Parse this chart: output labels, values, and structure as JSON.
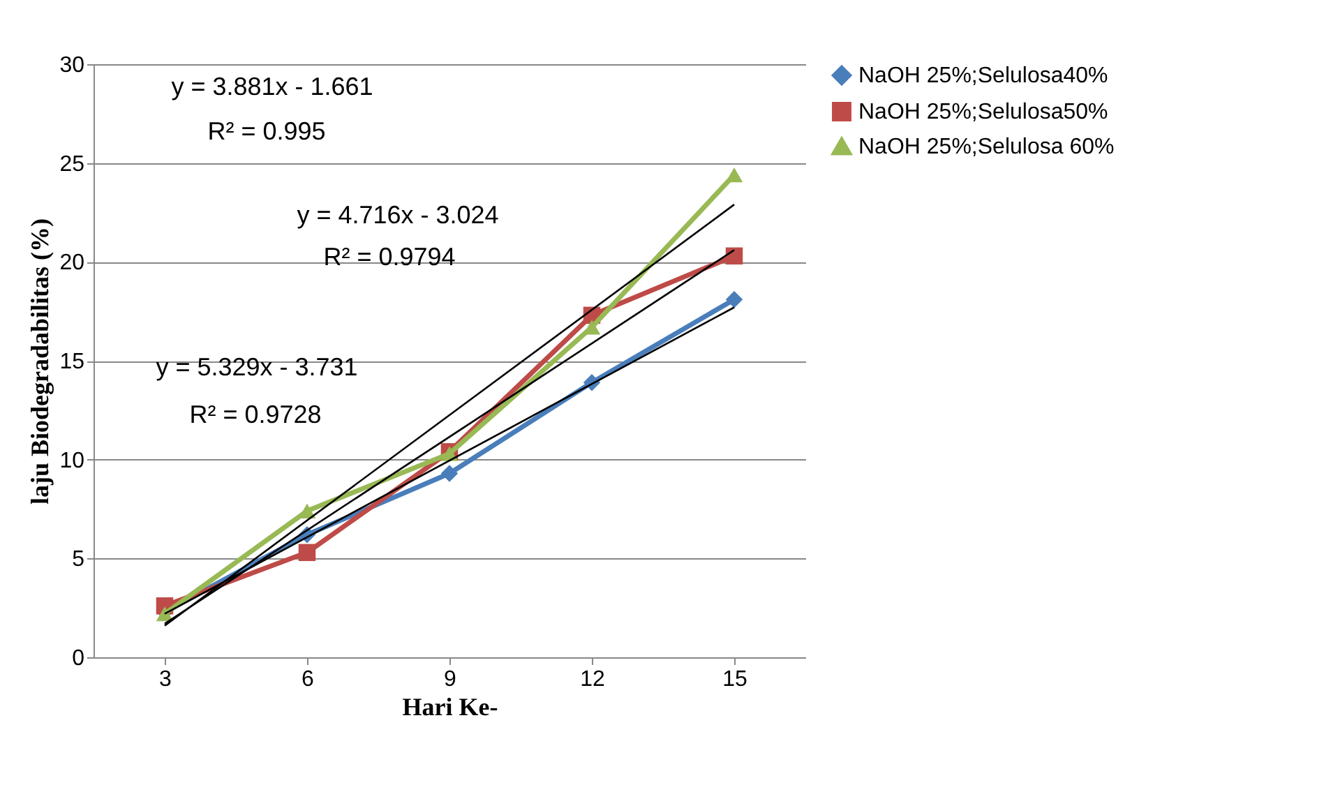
{
  "chart_data": {
    "type": "line",
    "xlabel": "Hari Ke-",
    "ylabel": "laju Biodegradabilitas (%)",
    "categories": [
      "3",
      "6",
      "9",
      "12",
      "15"
    ],
    "series": [
      {
        "name": "NaOH 25%;Selulosa40%",
        "color": "#4a7ebb",
        "marker": "diamond",
        "values": [
          2.3,
          6.2,
          9.3,
          13.9,
          18.1
        ]
      },
      {
        "name": "NaOH 25%;Selulosa50%",
        "color": "#be4b48",
        "marker": "square",
        "values": [
          2.6,
          5.3,
          10.4,
          17.3,
          20.3
        ]
      },
      {
        "name": "NaOH 25%;Selulosa 60%",
        "color": "#98b954",
        "marker": "triangle",
        "values": [
          2.2,
          7.4,
          10.3,
          16.7,
          24.4
        ]
      },
      {
        "type": "line",
        "color": "#000000",
        "marker": "none",
        "x": [
          "3",
          "15"
        ],
        "values": [
          2.2,
          17.7
        ]
      },
      {
        "type": "line",
        "color": "#000000",
        "marker": "none",
        "x": [
          "3",
          "15"
        ],
        "values": [
          1.7,
          20.6
        ]
      },
      {
        "type": "line",
        "color": "#000000",
        "marker": "none",
        "x": [
          "3",
          "15"
        ],
        "values": [
          1.6,
          22.9
        ]
      }
    ],
    "ylim": [
      0,
      30
    ],
    "yticks": [
      0,
      5,
      10,
      15,
      20,
      25,
      30
    ],
    "grid": "y",
    "legend": "right",
    "annotations": [
      "y = 3.881x - 1.661",
      "R² = 0.995",
      "y = 4.716x - 3.024",
      "R² = 0.9794",
      "y = 5.329x - 3.731",
      "R² = 0.9728"
    ]
  }
}
